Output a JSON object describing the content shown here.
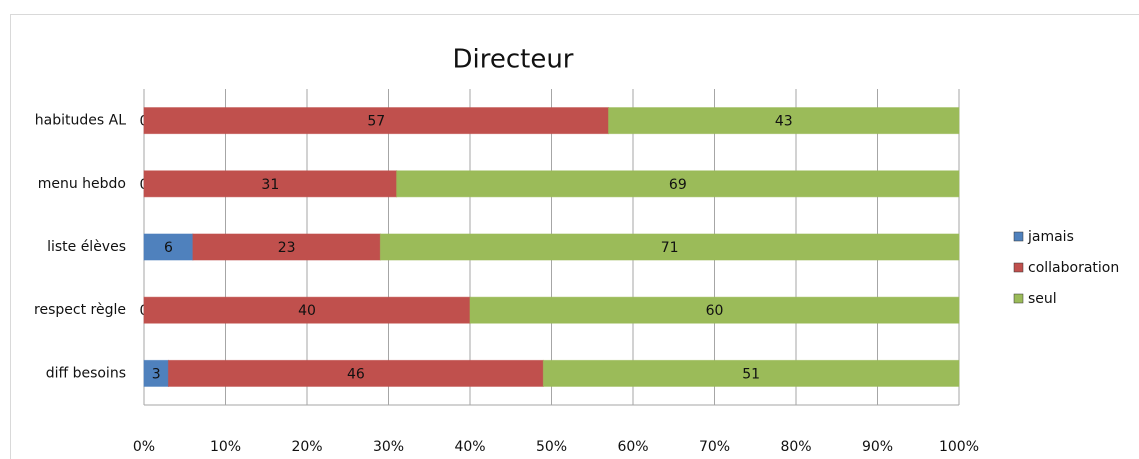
{
  "chart_data": {
    "type": "stacked_barh",
    "title": "Directeur",
    "categories": [
      "habitudes AL",
      "menu hebdo",
      "liste élèves",
      "respect règle",
      "diff besoins"
    ],
    "series": [
      {
        "name": "jamais",
        "color": "#4f81bd",
        "values": [
          0,
          0,
          6,
          0,
          3
        ]
      },
      {
        "name": "collaboration",
        "color": "#c0504d",
        "values": [
          57,
          31,
          23,
          40,
          46
        ]
      },
      {
        "name": "seul",
        "color": "#9bbb59",
        "values": [
          43,
          69,
          71,
          60,
          51
        ]
      }
    ],
    "xlim": [
      0,
      100
    ],
    "xticks": [
      {
        "value": 0,
        "label": "0%"
      },
      {
        "value": 10,
        "label": "10%"
      },
      {
        "value": 20,
        "label": "20%"
      },
      {
        "value": 30,
        "label": "30%"
      },
      {
        "value": 40,
        "label": "40%"
      },
      {
        "value": 50,
        "label": "50%"
      },
      {
        "value": 60,
        "label": "60%"
      },
      {
        "value": 70,
        "label": "70%"
      },
      {
        "value": 80,
        "label": "80%"
      },
      {
        "value": 90,
        "label": "90%"
      },
      {
        "value": 100,
        "label": "100%"
      }
    ],
    "grid": true,
    "legend": "right"
  }
}
